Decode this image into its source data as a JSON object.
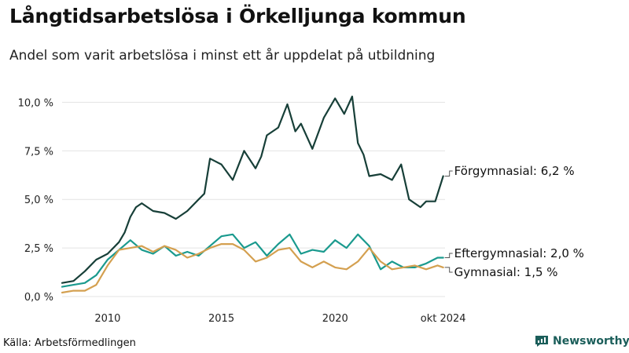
{
  "header": {
    "title": "Långtidsarbetslösa i Örkelljunga kommun",
    "subtitle": "Andel som varit arbetslösa i minst ett år uppdelat på utbildning"
  },
  "footer": {
    "source": "Källa: Arbetsförmedlingen",
    "brand": "Newsworthy"
  },
  "chart_data": {
    "type": "line",
    "title": "Långtidsarbetslösa i Örkelljunga kommun",
    "subtitle": "Andel som varit arbetslösa i minst ett år uppdelat på utbildning",
    "xlabel": "",
    "ylabel": "",
    "xlim": [
      2008.0,
      2024.83
    ],
    "ylim": [
      0,
      10.5
    ],
    "y_ticks": [
      0,
      2.5,
      5,
      7.5,
      10
    ],
    "y_tick_labels": [
      "0,0 %",
      "2,5 %",
      "5,0 %",
      "7,5 %",
      "10,0 %"
    ],
    "x_ticks": [
      2010,
      2015,
      2020,
      2024.75
    ],
    "x_tick_labels": [
      "2010",
      "2015",
      "2020",
      "okt 2024"
    ],
    "grid": "horizontal",
    "series": [
      {
        "name": "Förgymnasial",
        "end_label": "Förgymnasial: 6,2 %",
        "color": "#173f38",
        "x": [
          2008.0,
          2008.5,
          2009.0,
          2009.5,
          2010.0,
          2010.5,
          2010.75,
          2011.0,
          2011.25,
          2011.5,
          2012.0,
          2012.5,
          2013.0,
          2013.5,
          2014.0,
          2014.25,
          2014.5,
          2015.0,
          2015.5,
          2016.0,
          2016.5,
          2016.75,
          2017.0,
          2017.5,
          2017.9,
          2018.25,
          2018.5,
          2019.0,
          2019.5,
          2020.0,
          2020.4,
          2020.75,
          2021.0,
          2021.25,
          2021.5,
          2022.0,
          2022.5,
          2022.9,
          2023.25,
          2023.75,
          2024.0,
          2024.4,
          2024.75
        ],
        "values": [
          0.7,
          0.8,
          1.3,
          1.9,
          2.2,
          2.8,
          3.3,
          4.1,
          4.6,
          4.8,
          4.4,
          4.3,
          4.0,
          4.4,
          5.0,
          5.3,
          7.1,
          6.8,
          6.0,
          7.5,
          6.6,
          7.2,
          8.3,
          8.7,
          9.9,
          8.5,
          8.9,
          7.6,
          9.2,
          10.2,
          9.4,
          10.3,
          7.9,
          7.3,
          6.2,
          6.3,
          6.0,
          6.8,
          5.0,
          4.6,
          4.9,
          4.9,
          6.2
        ]
      },
      {
        "name": "Eftergymnasial",
        "end_label": "Eftergymnasial: 2,0 %",
        "color": "#1a9a8e",
        "x": [
          2008.0,
          2008.5,
          2009.0,
          2009.5,
          2010.0,
          2010.5,
          2011.0,
          2011.5,
          2012.0,
          2012.5,
          2013.0,
          2013.5,
          2014.0,
          2014.5,
          2015.0,
          2015.5,
          2016.0,
          2016.5,
          2017.0,
          2017.5,
          2018.0,
          2018.5,
          2019.0,
          2019.5,
          2020.0,
          2020.5,
          2021.0,
          2021.5,
          2022.0,
          2022.5,
          2023.0,
          2023.5,
          2024.0,
          2024.5,
          2024.75
        ],
        "values": [
          0.5,
          0.6,
          0.7,
          1.1,
          1.9,
          2.4,
          2.9,
          2.4,
          2.2,
          2.6,
          2.1,
          2.3,
          2.1,
          2.6,
          3.1,
          3.2,
          2.5,
          2.8,
          2.1,
          2.7,
          3.2,
          2.2,
          2.4,
          2.3,
          2.9,
          2.5,
          3.2,
          2.6,
          1.4,
          1.8,
          1.5,
          1.5,
          1.7,
          2.0,
          2.0
        ]
      },
      {
        "name": "Gymnasial",
        "end_label": "Gymnasial: 1,5 %",
        "color": "#d4a050",
        "x": [
          2008.0,
          2008.5,
          2009.0,
          2009.5,
          2010.0,
          2010.5,
          2011.0,
          2011.5,
          2012.0,
          2012.5,
          2013.0,
          2013.5,
          2014.0,
          2014.5,
          2015.0,
          2015.5,
          2016.0,
          2016.5,
          2017.0,
          2017.5,
          2018.0,
          2018.5,
          2019.0,
          2019.5,
          2020.0,
          2020.5,
          2021.0,
          2021.5,
          2022.0,
          2022.5,
          2023.0,
          2023.5,
          2024.0,
          2024.5,
          2024.75
        ],
        "values": [
          0.2,
          0.3,
          0.3,
          0.6,
          1.6,
          2.4,
          2.5,
          2.6,
          2.3,
          2.6,
          2.4,
          2.0,
          2.2,
          2.5,
          2.7,
          2.7,
          2.4,
          1.8,
          2.0,
          2.4,
          2.5,
          1.8,
          1.5,
          1.8,
          1.5,
          1.4,
          1.8,
          2.5,
          1.8,
          1.4,
          1.5,
          1.6,
          1.4,
          1.6,
          1.5
        ]
      }
    ]
  }
}
